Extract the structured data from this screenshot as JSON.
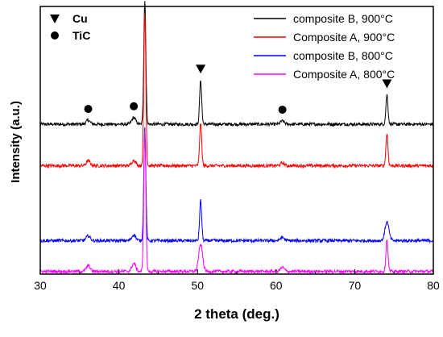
{
  "chart_data": {
    "type": "line",
    "title": "",
    "xlabel": "2 theta (deg.)",
    "ylabel": "Intensity (a.u.)",
    "xlim": [
      30,
      80
    ],
    "x_ticks": [
      30,
      40,
      50,
      60,
      70,
      80
    ],
    "y_ticks_shown": false,
    "grid": false,
    "legend_position": "top-right",
    "series": [
      {
        "name": "composite B, 900°C",
        "color": "#000000",
        "baseline": 0.56,
        "peaks": [
          {
            "x": 36.1,
            "height": 0.015
          },
          {
            "x": 41.9,
            "height": 0.025
          },
          {
            "x": 43.3,
            "height": 0.46
          },
          {
            "x": 50.4,
            "height": 0.165
          },
          {
            "x": 60.8,
            "height": 0.012
          },
          {
            "x": 74.1,
            "height": 0.11
          }
        ]
      },
      {
        "name": "Composite A, 900°C",
        "color": "#ff0000",
        "baseline": 0.405,
        "peaks": [
          {
            "x": 36.1,
            "height": 0.018
          },
          {
            "x": 41.9,
            "height": 0.02
          },
          {
            "x": 43.3,
            "height": 0.57
          },
          {
            "x": 50.4,
            "height": 0.16
          },
          {
            "x": 60.8,
            "height": 0.01
          },
          {
            "x": 74.1,
            "height": 0.12
          }
        ]
      },
      {
        "name": "composite B, 800°C",
        "color": "#0000ff",
        "baseline": 0.125,
        "peaks": [
          {
            "x": 36.1,
            "height": 0.018
          },
          {
            "x": 41.9,
            "height": 0.022
          },
          {
            "x": 43.3,
            "height": 0.42
          },
          {
            "x": 50.4,
            "height": 0.15
          },
          {
            "x": 60.8,
            "height": 0.012
          },
          {
            "x": 74.1,
            "height": 0.07
          }
        ]
      },
      {
        "name": "Composite A, 800°C",
        "color": "#ff00ff",
        "baseline": 0.01,
        "peaks": [
          {
            "x": 36.1,
            "height": 0.022
          },
          {
            "x": 41.9,
            "height": 0.03
          },
          {
            "x": 43.3,
            "height": 0.52
          },
          {
            "x": 50.4,
            "height": 0.1
          },
          {
            "x": 60.8,
            "height": 0.015
          },
          {
            "x": 74.1,
            "height": 0.12
          }
        ]
      }
    ],
    "phase_legend": [
      {
        "symbol": "triangle-down",
        "label": "Cu"
      },
      {
        "symbol": "circle",
        "label": "TiC"
      }
    ],
    "phase_markers": [
      {
        "symbol": "triangle-down",
        "x": 43.3
      },
      {
        "symbol": "triangle-down",
        "x": 50.4
      },
      {
        "symbol": "triangle-down",
        "x": 74.1
      },
      {
        "symbol": "circle",
        "x": 36.1
      },
      {
        "symbol": "circle",
        "x": 41.9
      },
      {
        "symbol": "circle",
        "x": 60.8
      }
    ]
  }
}
